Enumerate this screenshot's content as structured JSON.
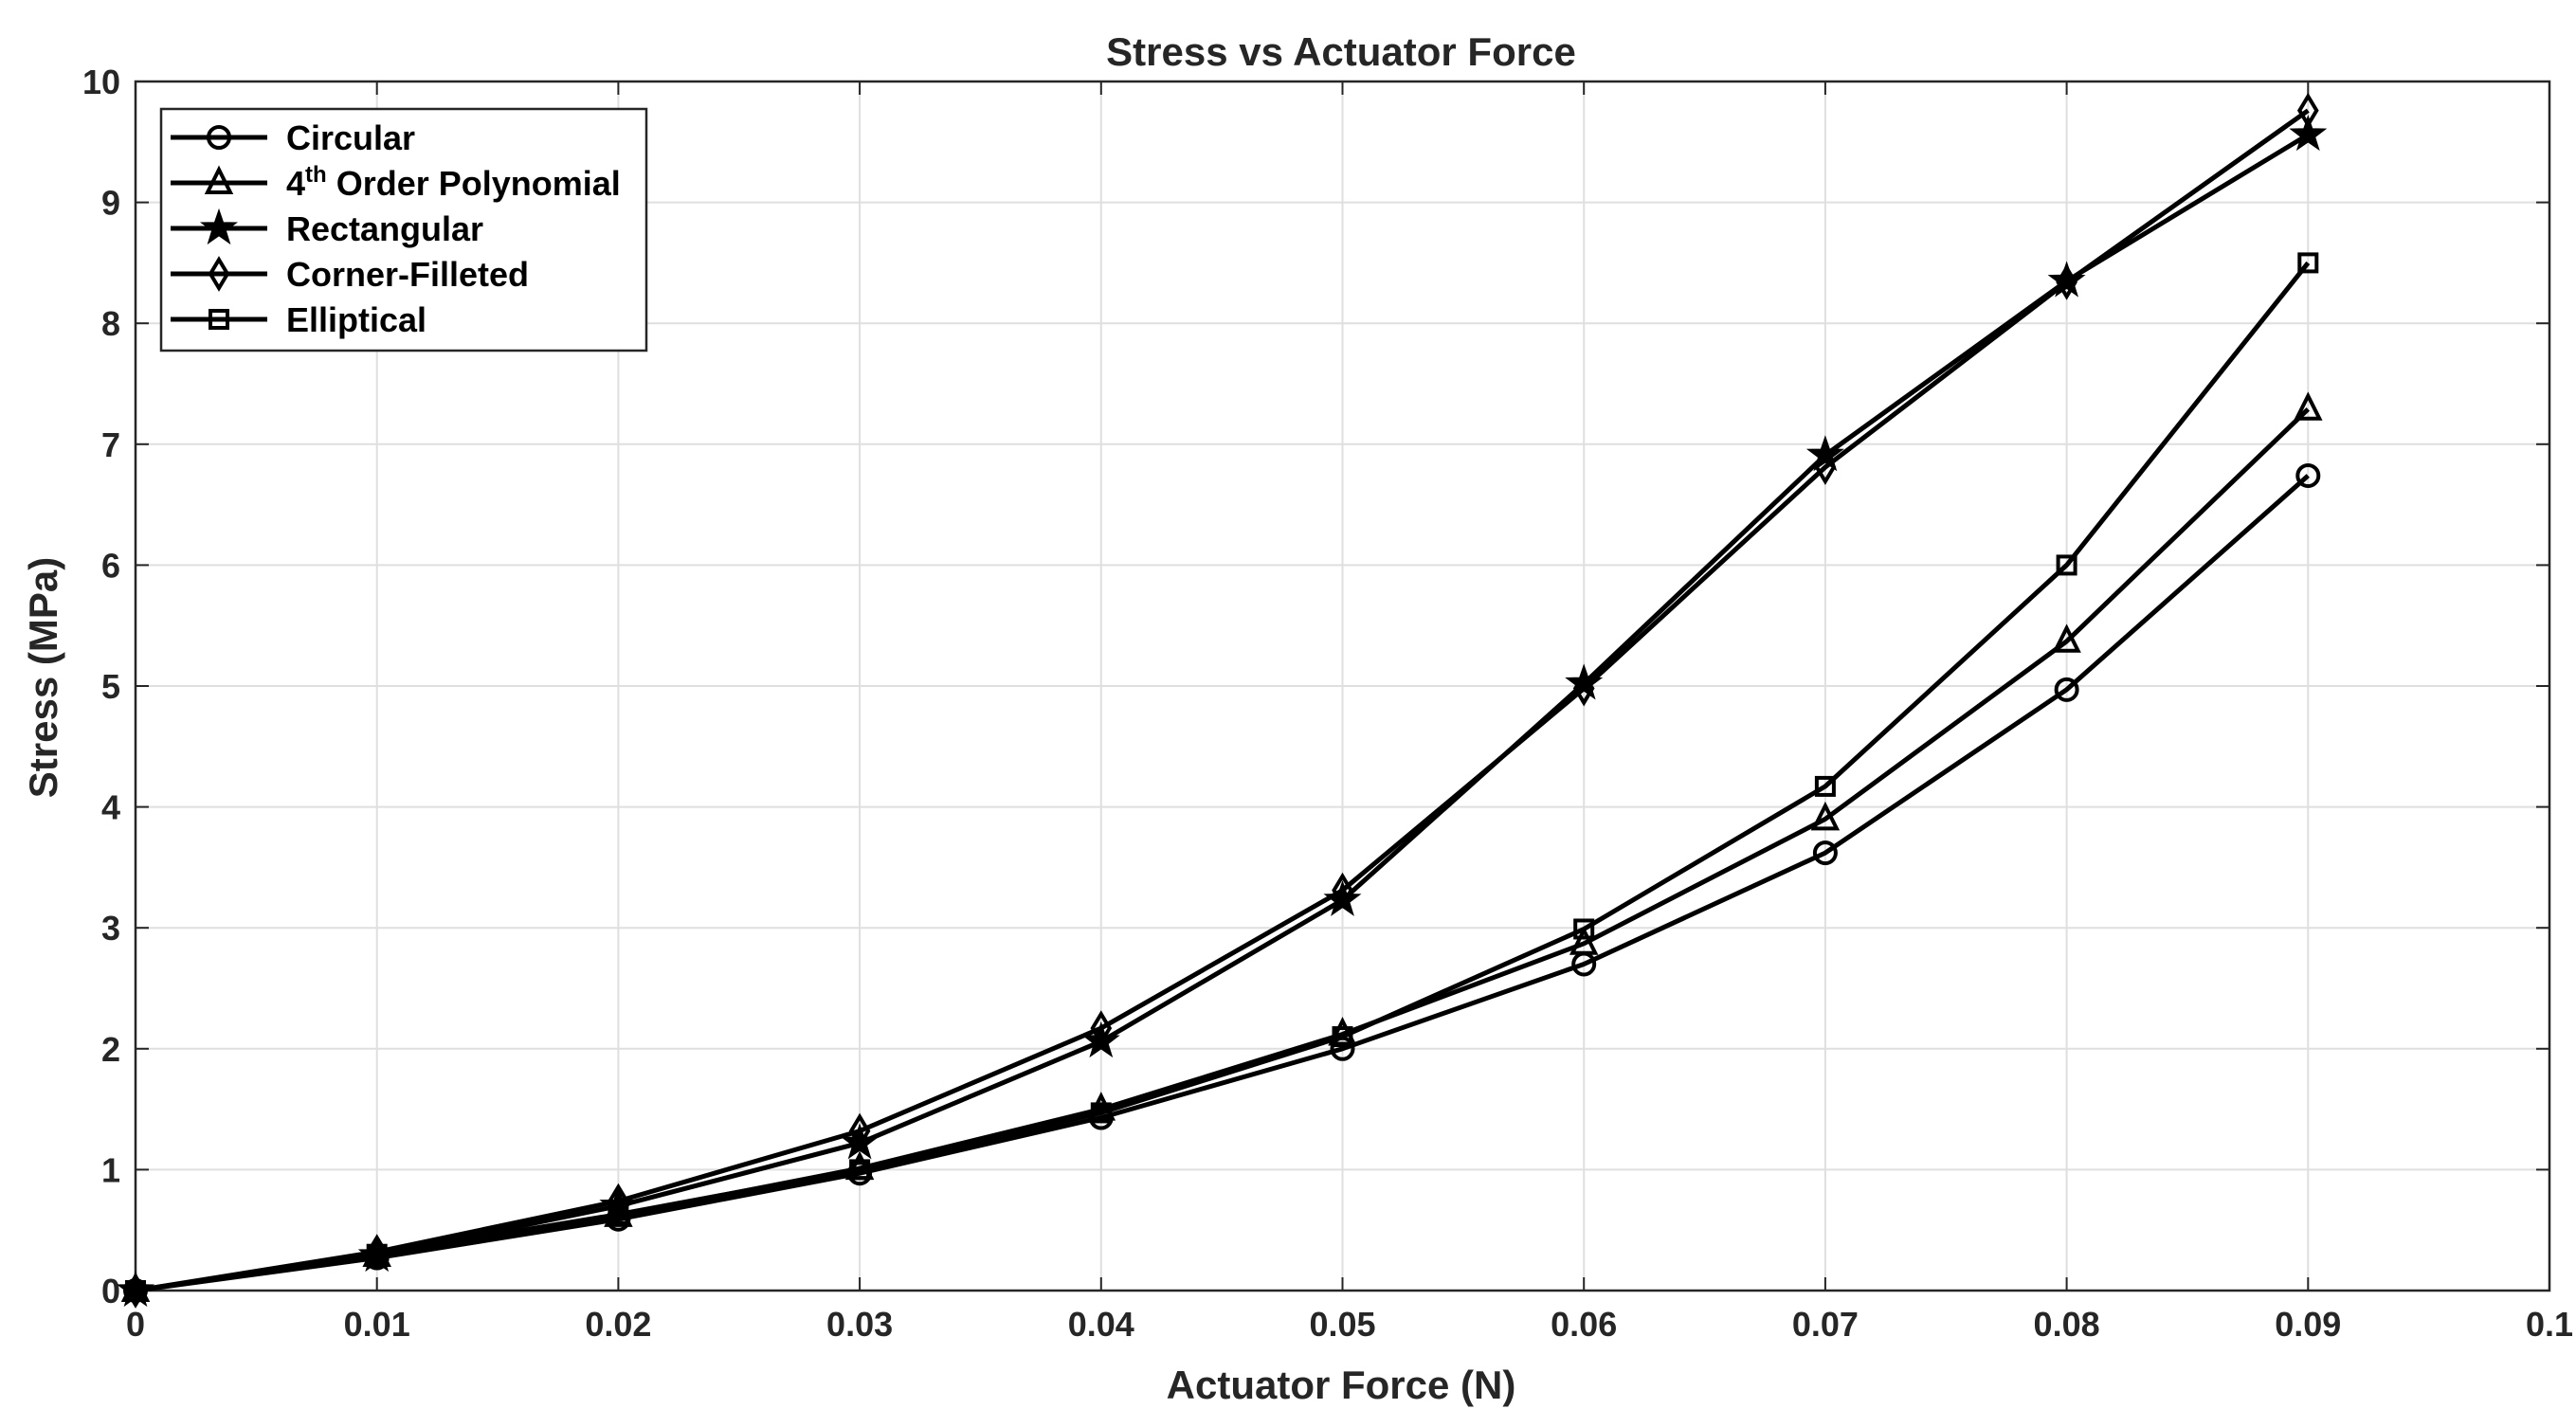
{
  "chart_data": {
    "type": "line",
    "title": "Stress vs Actuator Force",
    "xlabel": "Actuator Force (N)",
    "ylabel": "Stress (MPa)",
    "xlim": [
      0,
      0.1
    ],
    "ylim": [
      0,
      10
    ],
    "x_ticks": [
      "0",
      "0.01",
      "0.02",
      "0.03",
      "0.04",
      "0.05",
      "0.06",
      "0.07",
      "0.08",
      "0.09",
      "0.1"
    ],
    "y_ticks": [
      "0",
      "1",
      "2",
      "3",
      "4",
      "5",
      "6",
      "7",
      "8",
      "9",
      "10"
    ],
    "grid": true,
    "legend_position": "top-left",
    "line_color": "#000000",
    "x": [
      0,
      0.01,
      0.02,
      0.03,
      0.04,
      0.05,
      0.06,
      0.07,
      0.08,
      0.09
    ],
    "series": [
      {
        "name": "Circular",
        "marker": "circle",
        "values": [
          0,
          0.27,
          0.59,
          0.97,
          1.43,
          2.0,
          2.7,
          3.62,
          4.97,
          6.74
        ]
      },
      {
        "name": "4",
        "name_sup": "th",
        "name_rest": " Order Polynomial",
        "marker": "triangle",
        "values": [
          0,
          0.29,
          0.62,
          1.01,
          1.5,
          2.12,
          2.87,
          3.9,
          5.37,
          7.29
        ]
      },
      {
        "name": "Rectangular",
        "marker": "star",
        "values": [
          0,
          0.29,
          0.7,
          1.22,
          2.06,
          3.23,
          5.02,
          6.91,
          8.35,
          9.56
        ]
      },
      {
        "name": "Corner-Filleted",
        "marker": "diamond",
        "values": [
          0,
          0.32,
          0.74,
          1.32,
          2.17,
          3.31,
          4.98,
          6.81,
          8.34,
          9.76
        ]
      },
      {
        "name": "Elliptical",
        "marker": "square",
        "values": [
          0,
          0.3,
          0.63,
          1.0,
          1.47,
          2.1,
          2.99,
          4.17,
          6.0,
          8.5
        ]
      }
    ]
  }
}
